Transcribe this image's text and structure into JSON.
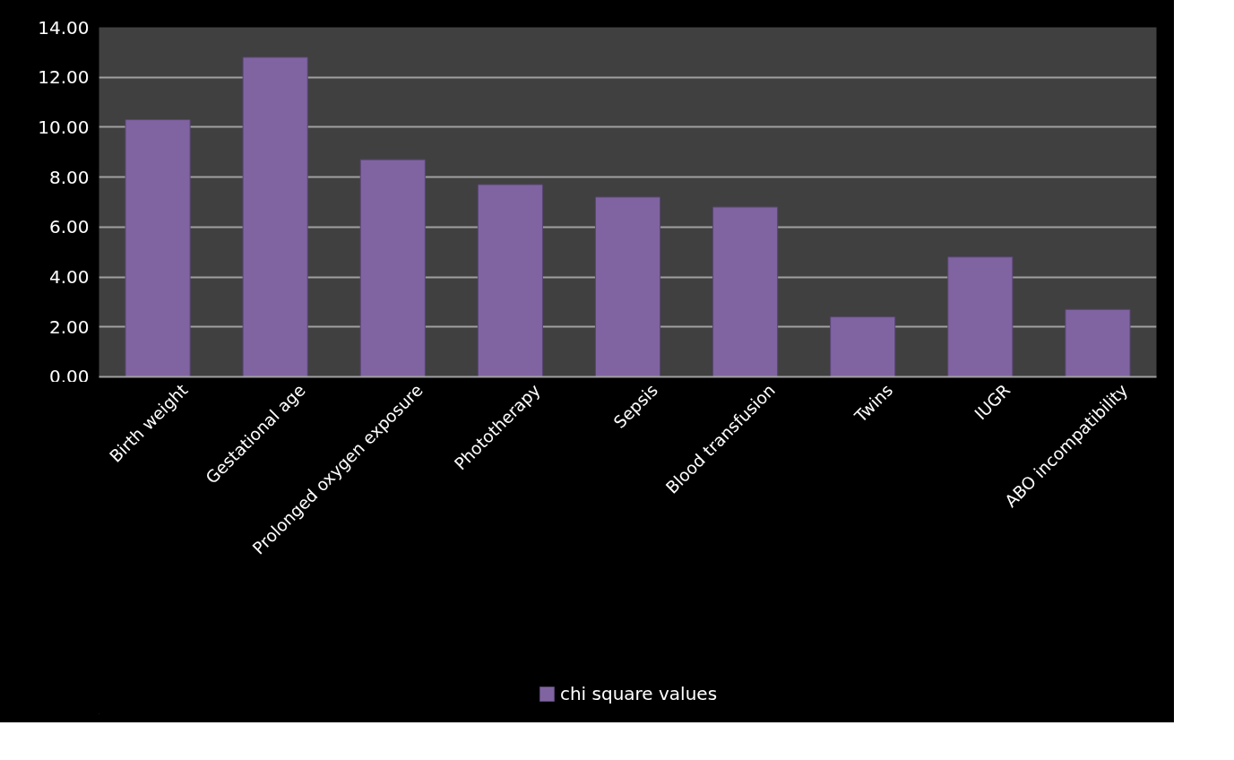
{
  "chart_data": {
    "type": "bar",
    "categories": [
      "Birth weight",
      "Gestational age",
      "Prolonged oxygen exposure",
      "Phototherapy",
      "Sepsis",
      "Blood transfusion",
      "Twins",
      "IUGR",
      "ABO incompatibility"
    ],
    "series": [
      {
        "name": "chi square values",
        "color": "#8064a2",
        "values": [
          10.3,
          12.8,
          8.7,
          7.7,
          7.2,
          6.8,
          2.4,
          4.8,
          2.7
        ]
      }
    ],
    "ylim": [
      0,
      14
    ],
    "yticks": [
      {
        "value": 0,
        "label": "0.00"
      },
      {
        "value": 2,
        "label": "2.00"
      },
      {
        "value": 4,
        "label": "4.00"
      },
      {
        "value": 6,
        "label": "6.00"
      },
      {
        "value": 8,
        "label": "8.00"
      },
      {
        "value": 10,
        "label": "10.00"
      },
      {
        "value": 12,
        "label": "12.00"
      },
      {
        "value": 14,
        "label": "14.00"
      }
    ],
    "grid": "y",
    "legend": "bottom"
  }
}
